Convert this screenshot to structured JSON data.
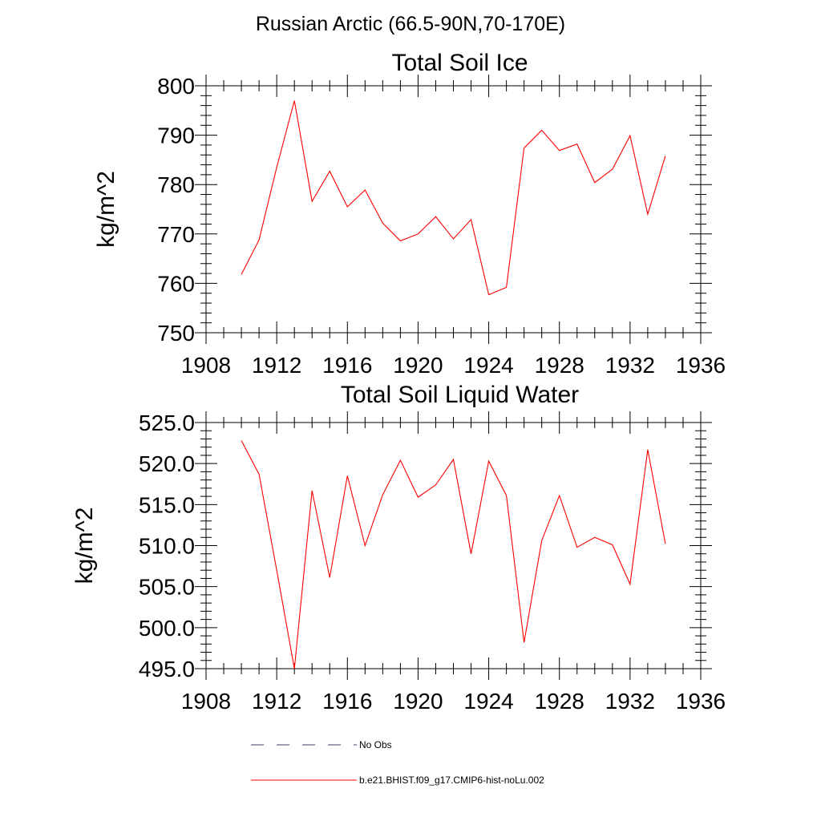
{
  "figure": {
    "title": "Russian Arctic (66.5-90N,70-170E)"
  },
  "legend": {
    "entries": [
      {
        "label": "No Obs",
        "style": "dashed",
        "color": "#3b3b6b"
      },
      {
        "label": "b.e21.BHIST.f09_g17.CMIP6-hist-noLu.002",
        "style": "solid",
        "color": "#ff0000"
      }
    ]
  },
  "chart_data": [
    {
      "type": "line",
      "title": "Total Soil Ice",
      "xlabel": "",
      "ylabel": "kg/m^2",
      "xlim": [
        1908,
        1936
      ],
      "ylim": [
        750,
        800
      ],
      "xticks": [
        1908,
        1912,
        1916,
        1920,
        1924,
        1928,
        1932,
        1936
      ],
      "yticks": [
        750,
        760,
        770,
        780,
        790,
        800
      ],
      "ytick_labels": [
        "750",
        "760",
        "770",
        "780",
        "790",
        "800"
      ],
      "grid": false,
      "color": "#ff0000",
      "series": [
        {
          "name": "b.e21.BHIST.f09_g17.CMIP6-hist-noLu.002",
          "x": [
            1910,
            1911,
            1912,
            1913,
            1914,
            1915,
            1916,
            1917,
            1918,
            1919,
            1920,
            1921,
            1922,
            1923,
            1924,
            1925,
            1926,
            1927,
            1928,
            1929,
            1930,
            1931,
            1932,
            1933,
            1934
          ],
          "y": [
            761.8,
            768.8,
            783.5,
            797.0,
            776.6,
            782.7,
            775.5,
            778.9,
            772.2,
            768.6,
            770.0,
            773.5,
            769.0,
            772.9,
            757.7,
            759.2,
            787.4,
            791.0,
            786.9,
            788.2,
            780.4,
            783.1,
            789.9,
            774.0,
            785.8
          ]
        }
      ]
    },
    {
      "type": "line",
      "title": "Total Soil Liquid Water",
      "xlabel": "",
      "ylabel": "kg/m^2",
      "xlim": [
        1908,
        1936
      ],
      "ylim": [
        495,
        525
      ],
      "xticks": [
        1908,
        1912,
        1916,
        1920,
        1924,
        1928,
        1932,
        1936
      ],
      "yticks": [
        495,
        500,
        505,
        510,
        515,
        520,
        525
      ],
      "ytick_labels": [
        "495.0",
        "500.0",
        "505.0",
        "510.0",
        "515.0",
        "520.0",
        "525.0"
      ],
      "grid": false,
      "color": "#ff0000",
      "series": [
        {
          "name": "b.e21.BHIST.f09_g17.CMIP6-hist-noLu.002",
          "x": [
            1910,
            1911,
            1912,
            1913,
            1914,
            1915,
            1916,
            1917,
            1918,
            1919,
            1920,
            1921,
            1922,
            1923,
            1924,
            1925,
            1926,
            1927,
            1928,
            1929,
            1930,
            1931,
            1932,
            1933,
            1934
          ],
          "y": [
            522.8,
            518.7,
            507.0,
            495.0,
            516.7,
            506.1,
            518.5,
            510.0,
            516.2,
            520.4,
            515.9,
            517.4,
            520.5,
            509.0,
            520.3,
            516.1,
            498.2,
            510.6,
            516.1,
            509.8,
            511.0,
            510.1,
            505.3,
            521.7,
            510.2
          ]
        }
      ]
    }
  ]
}
